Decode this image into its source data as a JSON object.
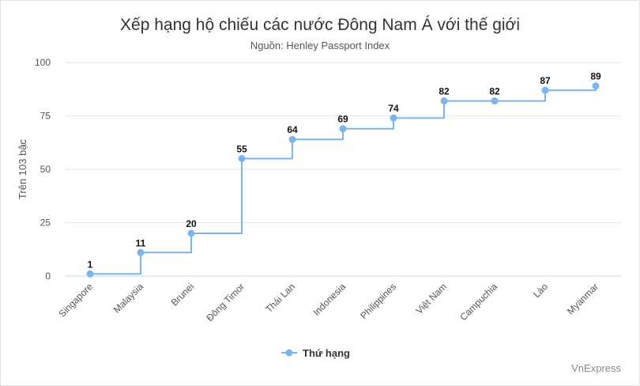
{
  "chart_data": {
    "type": "line",
    "step": true,
    "title": "Xếp hạng hộ chiếu các nước Đông Nam Á với thế giới",
    "subtitle": "Nguồn: Henley Passport Index",
    "xlabel": "",
    "ylabel": "Trên 103 bậc",
    "ylim": [
      0,
      100
    ],
    "yticks": [
      0,
      25,
      50,
      75,
      100
    ],
    "grid": true,
    "legend_position": "bottom-center",
    "categories": [
      "Singapore",
      "Malaysia",
      "Brunei",
      "Đông Timor",
      "Thái Lan",
      "Indonesia",
      "Philippines",
      "Việt Nam",
      "Campuchia",
      "Lào",
      "Myanmar"
    ],
    "series": [
      {
        "name": "Thứ hạng",
        "values": [
          1,
          11,
          20,
          55,
          64,
          69,
          74,
          82,
          82,
          87,
          89
        ]
      }
    ],
    "credit": "VnExpress",
    "colors": {
      "series": "#7cb5ec",
      "grid": "#e6e6e6",
      "axis": "#ccd6eb"
    }
  }
}
